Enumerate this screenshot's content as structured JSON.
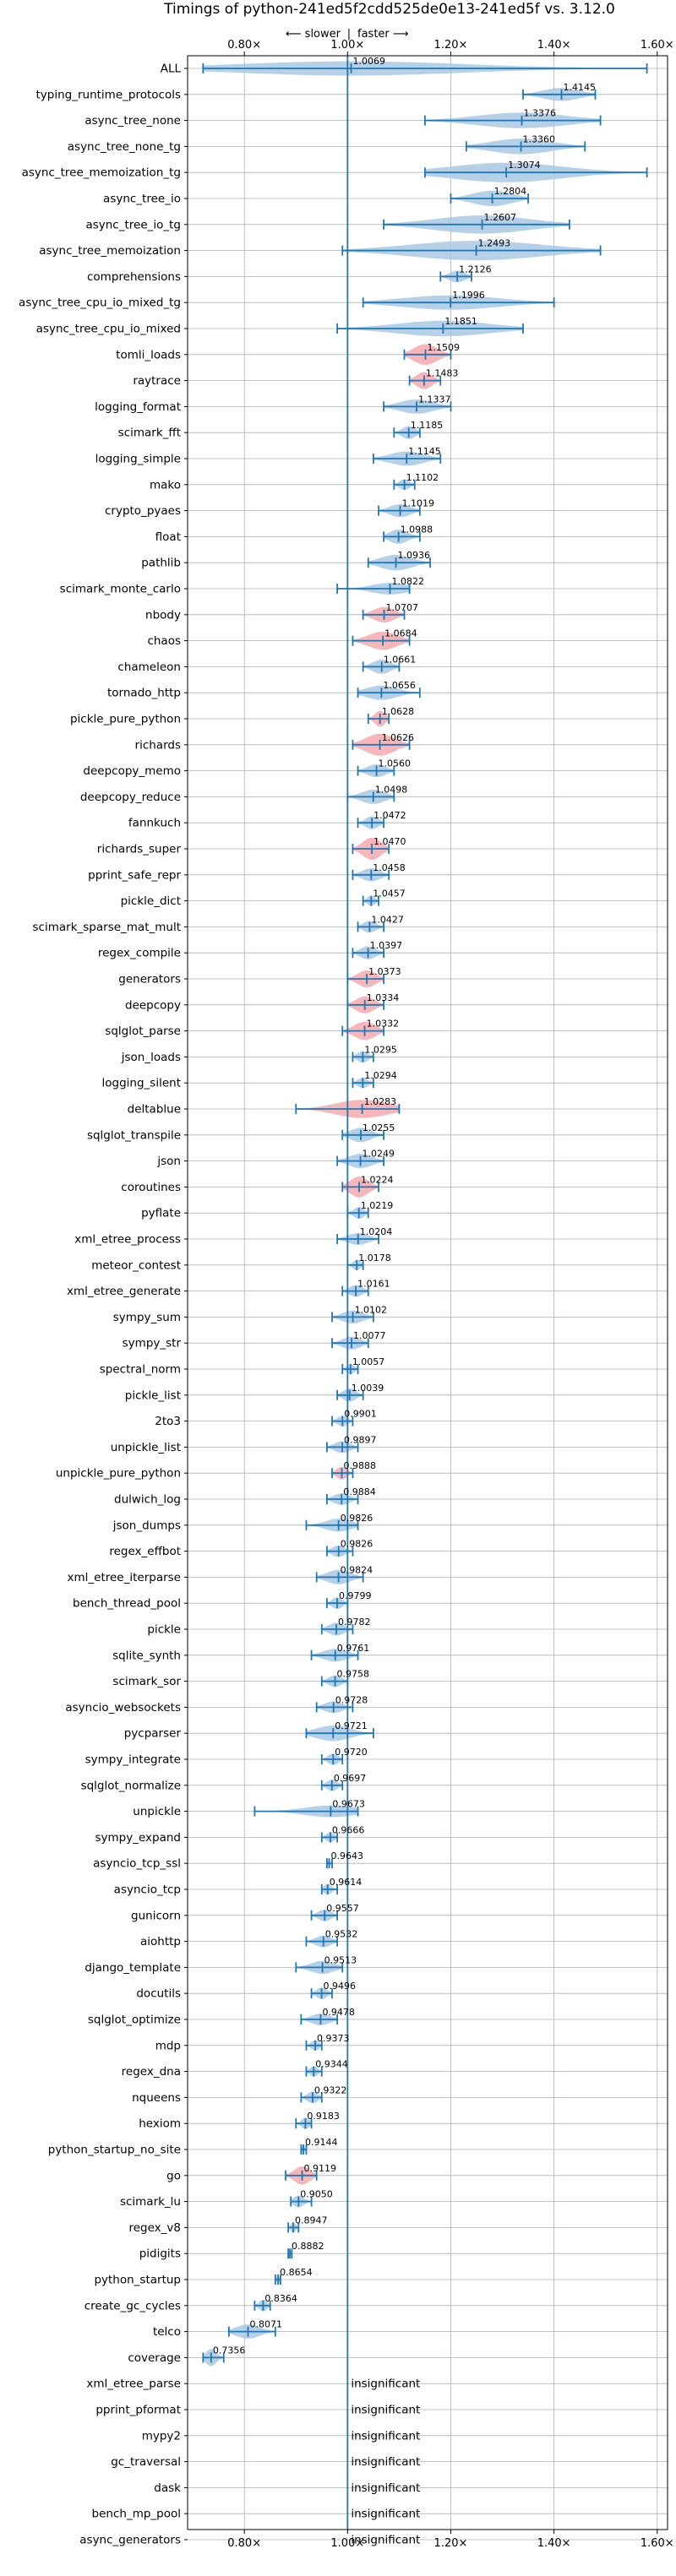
{
  "chart_data": {
    "type": "violin",
    "title": "Timings of python-241ed5f2cdd525de0e13-241ed5f vs. 3.12.0",
    "direction_labels": {
      "slower": "⟵ slower",
      "separator": "|",
      "faster": "faster ⟶"
    },
    "x_ticks": [
      {
        "value": 0.8,
        "label": "0.80×"
      },
      {
        "value": 1.0,
        "label": "1.00×"
      },
      {
        "value": 1.2,
        "label": "1.20×"
      },
      {
        "value": 1.4,
        "label": "1.40×"
      },
      {
        "value": 1.6,
        "label": "1.60×"
      }
    ],
    "xlim": [
      0.69,
      1.62
    ],
    "reference_value": 1.0,
    "grid": true,
    "colors": {
      "normal": "#a9c8e4",
      "highlight": "#f4a9ae",
      "line": "#1f77b4",
      "grid": "#b0b0b0"
    },
    "benchmarks": [
      {
        "name": "ALL",
        "value": 1.0069,
        "label": "1.0069",
        "min": 0.72,
        "max": 1.58,
        "width": 0.55,
        "highlight": false
      },
      {
        "name": "typing_runtime_protocols",
        "value": 1.4145,
        "label": "1.4145",
        "min": 1.34,
        "max": 1.48,
        "width": 0.5,
        "highlight": false
      },
      {
        "name": "async_tree_none",
        "value": 1.3376,
        "label": "1.3376",
        "min": 1.15,
        "max": 1.49,
        "width": 0.6,
        "highlight": false
      },
      {
        "name": "async_tree_none_tg",
        "value": 1.336,
        "label": "1.3360",
        "min": 1.23,
        "max": 1.46,
        "width": 0.6,
        "highlight": false
      },
      {
        "name": "async_tree_memoization_tg",
        "value": 1.3074,
        "label": "1.3074",
        "min": 1.15,
        "max": 1.58,
        "width": 0.75,
        "highlight": false
      },
      {
        "name": "async_tree_io",
        "value": 1.2804,
        "label": "1.2804",
        "min": 1.2,
        "max": 1.35,
        "width": 0.6,
        "highlight": false
      },
      {
        "name": "async_tree_io_tg",
        "value": 1.2607,
        "label": "1.2607",
        "min": 1.07,
        "max": 1.43,
        "width": 0.7,
        "highlight": false
      },
      {
        "name": "async_tree_memoization",
        "value": 1.2493,
        "label": "1.2493",
        "min": 0.99,
        "max": 1.49,
        "width": 0.75,
        "highlight": false
      },
      {
        "name": "comprehensions",
        "value": 1.2126,
        "label": "1.2126",
        "min": 1.18,
        "max": 1.24,
        "width": 0.45,
        "highlight": false
      },
      {
        "name": "async_tree_cpu_io_mixed_tg",
        "value": 1.1996,
        "label": "1.1996",
        "min": 1.03,
        "max": 1.4,
        "width": 0.55,
        "highlight": false
      },
      {
        "name": "async_tree_cpu_io_mixed",
        "value": 1.1851,
        "label": "1.1851",
        "min": 0.98,
        "max": 1.34,
        "width": 0.6,
        "highlight": false
      },
      {
        "name": "tomli_loads",
        "value": 1.1509,
        "label": "1.1509",
        "min": 1.11,
        "max": 1.2,
        "width": 0.8,
        "highlight": true
      },
      {
        "name": "raytrace",
        "value": 1.1483,
        "label": "1.1483",
        "min": 1.12,
        "max": 1.18,
        "width": 0.65,
        "highlight": true
      },
      {
        "name": "logging_format",
        "value": 1.1337,
        "label": "1.1337",
        "min": 1.07,
        "max": 1.2,
        "width": 0.55,
        "highlight": false
      },
      {
        "name": "scimark_fft",
        "value": 1.1185,
        "label": "1.1185",
        "min": 1.09,
        "max": 1.14,
        "width": 0.5,
        "highlight": false
      },
      {
        "name": "logging_simple",
        "value": 1.1145,
        "label": "1.1145",
        "min": 1.05,
        "max": 1.18,
        "width": 0.55,
        "highlight": false
      },
      {
        "name": "mako",
        "value": 1.1102,
        "label": "1.1102",
        "min": 1.09,
        "max": 1.13,
        "width": 0.4,
        "highlight": false
      },
      {
        "name": "crypto_pyaes",
        "value": 1.1019,
        "label": "1.1019",
        "min": 1.06,
        "max": 1.14,
        "width": 0.5,
        "highlight": false
      },
      {
        "name": "float",
        "value": 1.0988,
        "label": "1.0988",
        "min": 1.07,
        "max": 1.14,
        "width": 0.55,
        "highlight": false
      },
      {
        "name": "pathlib",
        "value": 1.0936,
        "label": "1.0936",
        "min": 1.04,
        "max": 1.16,
        "width": 0.6,
        "highlight": false
      },
      {
        "name": "scimark_monte_carlo",
        "value": 1.0822,
        "label": "1.0822",
        "min": 0.98,
        "max": 1.12,
        "width": 0.45,
        "highlight": false
      },
      {
        "name": "nbody",
        "value": 1.0707,
        "label": "1.0707",
        "min": 1.03,
        "max": 1.11,
        "width": 0.6,
        "highlight": true
      },
      {
        "name": "chaos",
        "value": 1.0684,
        "label": "1.0684",
        "min": 1.01,
        "max": 1.12,
        "width": 0.7,
        "highlight": true
      },
      {
        "name": "chameleon",
        "value": 1.0661,
        "label": "1.0661",
        "min": 1.03,
        "max": 1.1,
        "width": 0.55,
        "highlight": false
      },
      {
        "name": "tornado_http",
        "value": 1.0656,
        "label": "1.0656",
        "min": 1.02,
        "max": 1.14,
        "width": 0.55,
        "highlight": false
      },
      {
        "name": "pickle_pure_python",
        "value": 1.0628,
        "label": "1.0628",
        "min": 1.04,
        "max": 1.08,
        "width": 0.6,
        "highlight": true
      },
      {
        "name": "richards",
        "value": 1.0626,
        "label": "1.0626",
        "min": 1.01,
        "max": 1.12,
        "width": 0.85,
        "highlight": true
      },
      {
        "name": "deepcopy_memo",
        "value": 1.056,
        "label": "1.0560",
        "min": 1.02,
        "max": 1.09,
        "width": 0.5,
        "highlight": false
      },
      {
        "name": "deepcopy_reduce",
        "value": 1.0498,
        "label": "1.0498",
        "min": 1.0,
        "max": 1.09,
        "width": 0.55,
        "highlight": false
      },
      {
        "name": "fannkuch",
        "value": 1.0472,
        "label": "1.0472",
        "min": 1.02,
        "max": 1.07,
        "width": 0.5,
        "highlight": false
      },
      {
        "name": "richards_super",
        "value": 1.047,
        "label": "1.0470",
        "min": 1.01,
        "max": 1.08,
        "width": 0.85,
        "highlight": true
      },
      {
        "name": "pprint_safe_repr",
        "value": 1.0458,
        "label": "1.0458",
        "min": 1.01,
        "max": 1.08,
        "width": 0.5,
        "highlight": false
      },
      {
        "name": "pickle_dict",
        "value": 1.0457,
        "label": "1.0457",
        "min": 1.03,
        "max": 1.06,
        "width": 0.4,
        "highlight": false
      },
      {
        "name": "scimark_sparse_mat_mult",
        "value": 1.0427,
        "label": "1.0427",
        "min": 1.02,
        "max": 1.07,
        "width": 0.45,
        "highlight": false
      },
      {
        "name": "regex_compile",
        "value": 1.0397,
        "label": "1.0397",
        "min": 1.01,
        "max": 1.07,
        "width": 0.5,
        "highlight": false
      },
      {
        "name": "generators",
        "value": 1.0373,
        "label": "1.0373",
        "min": 1.0,
        "max": 1.07,
        "width": 0.65,
        "highlight": true
      },
      {
        "name": "deepcopy",
        "value": 1.0334,
        "label": "1.0334",
        "min": 1.0,
        "max": 1.07,
        "width": 0.65,
        "highlight": true
      },
      {
        "name": "sqlglot_parse",
        "value": 1.0332,
        "label": "1.0332",
        "min": 0.99,
        "max": 1.07,
        "width": 0.7,
        "highlight": true
      },
      {
        "name": "json_loads",
        "value": 1.0295,
        "label": "1.0295",
        "min": 1.01,
        "max": 1.05,
        "width": 0.45,
        "highlight": false
      },
      {
        "name": "logging_silent",
        "value": 1.0294,
        "label": "1.0294",
        "min": 1.01,
        "max": 1.05,
        "width": 0.4,
        "highlight": false
      },
      {
        "name": "deltablue",
        "value": 1.0283,
        "label": "1.0283",
        "min": 0.9,
        "max": 1.1,
        "width": 0.7,
        "highlight": true
      },
      {
        "name": "sqlglot_transpile",
        "value": 1.0255,
        "label": "1.0255",
        "min": 0.99,
        "max": 1.07,
        "width": 0.55,
        "highlight": false
      },
      {
        "name": "json",
        "value": 1.0249,
        "label": "1.0249",
        "min": 0.98,
        "max": 1.07,
        "width": 0.55,
        "highlight": false
      },
      {
        "name": "coroutines",
        "value": 1.0224,
        "label": "1.0224",
        "min": 0.99,
        "max": 1.06,
        "width": 0.8,
        "highlight": true
      },
      {
        "name": "pyflate",
        "value": 1.0219,
        "label": "1.0219",
        "min": 1.0,
        "max": 1.04,
        "width": 0.45,
        "highlight": false
      },
      {
        "name": "xml_etree_process",
        "value": 1.0204,
        "label": "1.0204",
        "min": 0.98,
        "max": 1.06,
        "width": 0.45,
        "highlight": false
      },
      {
        "name": "meteor_contest",
        "value": 1.0178,
        "label": "1.0178",
        "min": 1.0,
        "max": 1.03,
        "width": 0.4,
        "highlight": false
      },
      {
        "name": "xml_etree_generate",
        "value": 1.0161,
        "label": "1.0161",
        "min": 0.99,
        "max": 1.04,
        "width": 0.45,
        "highlight": false
      },
      {
        "name": "sympy_sum",
        "value": 1.0102,
        "label": "1.0102",
        "min": 0.97,
        "max": 1.05,
        "width": 0.5,
        "highlight": false
      },
      {
        "name": "sympy_str",
        "value": 1.0077,
        "label": "1.0077",
        "min": 0.97,
        "max": 1.04,
        "width": 0.5,
        "highlight": false
      },
      {
        "name": "spectral_norm",
        "value": 1.0057,
        "label": "1.0057",
        "min": 0.99,
        "max": 1.02,
        "width": 0.4,
        "highlight": false
      },
      {
        "name": "pickle_list",
        "value": 1.0039,
        "label": "1.0039",
        "min": 0.98,
        "max": 1.03,
        "width": 0.5,
        "highlight": false
      },
      {
        "name": "2to3",
        "value": 0.9901,
        "label": "0.9901",
        "min": 0.97,
        "max": 1.01,
        "width": 0.4,
        "highlight": false
      },
      {
        "name": "unpickle_list",
        "value": 0.9897,
        "label": "0.9897",
        "min": 0.96,
        "max": 1.02,
        "width": 0.45,
        "highlight": false
      },
      {
        "name": "unpickle_pure_python",
        "value": 0.9888,
        "label": "0.9888",
        "min": 0.97,
        "max": 1.01,
        "width": 0.5,
        "highlight": true
      },
      {
        "name": "dulwich_log",
        "value": 0.9884,
        "label": "0.9884",
        "min": 0.96,
        "max": 1.02,
        "width": 0.45,
        "highlight": false
      },
      {
        "name": "json_dumps",
        "value": 0.9826,
        "label": "0.9826",
        "min": 0.92,
        "max": 1.02,
        "width": 0.5,
        "highlight": false
      },
      {
        "name": "regex_effbot",
        "value": 0.9826,
        "label": "0.9826",
        "min": 0.96,
        "max": 1.01,
        "width": 0.45,
        "highlight": false
      },
      {
        "name": "xml_etree_iterparse",
        "value": 0.9824,
        "label": "0.9824",
        "min": 0.94,
        "max": 1.03,
        "width": 0.55,
        "highlight": false
      },
      {
        "name": "bench_thread_pool",
        "value": 0.9799,
        "label": "0.9799",
        "min": 0.96,
        "max": 1.0,
        "width": 0.45,
        "highlight": false
      },
      {
        "name": "pickle",
        "value": 0.9782,
        "label": "0.9782",
        "min": 0.95,
        "max": 1.01,
        "width": 0.5,
        "highlight": false
      },
      {
        "name": "sqlite_synth",
        "value": 0.9761,
        "label": "0.9761",
        "min": 0.93,
        "max": 1.02,
        "width": 0.5,
        "highlight": false
      },
      {
        "name": "scimark_sor",
        "value": 0.9758,
        "label": "0.9758",
        "min": 0.95,
        "max": 1.0,
        "width": 0.45,
        "highlight": false
      },
      {
        "name": "asyncio_websockets",
        "value": 0.9728,
        "label": "0.9728",
        "min": 0.94,
        "max": 1.01,
        "width": 0.45,
        "highlight": false
      },
      {
        "name": "pycparser",
        "value": 0.9721,
        "label": "0.9721",
        "min": 0.92,
        "max": 1.05,
        "width": 0.6,
        "highlight": false
      },
      {
        "name": "sympy_integrate",
        "value": 0.972,
        "label": "0.9720",
        "min": 0.95,
        "max": 0.99,
        "width": 0.45,
        "highlight": false
      },
      {
        "name": "sqlglot_normalize",
        "value": 0.9697,
        "label": "0.9697",
        "min": 0.95,
        "max": 0.99,
        "width": 0.45,
        "highlight": false
      },
      {
        "name": "unpickle",
        "value": 0.9673,
        "label": "0.9673",
        "min": 0.82,
        "max": 1.02,
        "width": 0.45,
        "highlight": false
      },
      {
        "name": "sympy_expand",
        "value": 0.9666,
        "label": "0.9666",
        "min": 0.95,
        "max": 0.98,
        "width": 0.4,
        "highlight": false
      },
      {
        "name": "asyncio_tcp_ssl",
        "value": 0.9643,
        "label": "0.9643",
        "min": 0.96,
        "max": 0.97,
        "width": 0.3,
        "highlight": false
      },
      {
        "name": "asyncio_tcp",
        "value": 0.9614,
        "label": "0.9614",
        "min": 0.95,
        "max": 0.98,
        "width": 0.4,
        "highlight": false
      },
      {
        "name": "gunicorn",
        "value": 0.9557,
        "label": "0.9557",
        "min": 0.93,
        "max": 0.98,
        "width": 0.45,
        "highlight": false
      },
      {
        "name": "aiohttp",
        "value": 0.9532,
        "label": "0.9532",
        "min": 0.92,
        "max": 0.98,
        "width": 0.45,
        "highlight": false
      },
      {
        "name": "django_template",
        "value": 0.9513,
        "label": "0.9513",
        "min": 0.9,
        "max": 0.99,
        "width": 0.5,
        "highlight": false
      },
      {
        "name": "docutils",
        "value": 0.9496,
        "label": "0.9496",
        "min": 0.93,
        "max": 0.97,
        "width": 0.45,
        "highlight": false
      },
      {
        "name": "sqlglot_optimize",
        "value": 0.9478,
        "label": "0.9478",
        "min": 0.91,
        "max": 0.98,
        "width": 0.45,
        "highlight": false
      },
      {
        "name": "mdp",
        "value": 0.9373,
        "label": "0.9373",
        "min": 0.92,
        "max": 0.95,
        "width": 0.4,
        "highlight": false
      },
      {
        "name": "regex_dna",
        "value": 0.9344,
        "label": "0.9344",
        "min": 0.92,
        "max": 0.95,
        "width": 0.4,
        "highlight": false
      },
      {
        "name": "nqueens",
        "value": 0.9322,
        "label": "0.9322",
        "min": 0.91,
        "max": 0.95,
        "width": 0.45,
        "highlight": false
      },
      {
        "name": "hexiom",
        "value": 0.9183,
        "label": "0.9183",
        "min": 0.9,
        "max": 0.93,
        "width": 0.45,
        "highlight": false
      },
      {
        "name": "python_startup_no_site",
        "value": 0.9144,
        "label": "0.9144",
        "min": 0.91,
        "max": 0.92,
        "width": 0.35,
        "highlight": false
      },
      {
        "name": "go",
        "value": 0.9119,
        "label": "0.9119",
        "min": 0.88,
        "max": 0.94,
        "width": 0.7,
        "highlight": true
      },
      {
        "name": "scimark_lu",
        "value": 0.905,
        "label": "0.9050",
        "min": 0.89,
        "max": 0.93,
        "width": 0.45,
        "highlight": false
      },
      {
        "name": "regex_v8",
        "value": 0.8947,
        "label": "0.8947",
        "min": 0.885,
        "max": 0.905,
        "width": 0.4,
        "highlight": false
      },
      {
        "name": "pidigits",
        "value": 0.8882,
        "label": "0.8882",
        "min": 0.885,
        "max": 0.892,
        "width": 0.25,
        "highlight": false
      },
      {
        "name": "python_startup",
        "value": 0.8654,
        "label": "0.8654",
        "min": 0.86,
        "max": 0.87,
        "width": 0.35,
        "highlight": false
      },
      {
        "name": "create_gc_cycles",
        "value": 0.8364,
        "label": "0.8364",
        "min": 0.82,
        "max": 0.85,
        "width": 0.45,
        "highlight": false
      },
      {
        "name": "telco",
        "value": 0.8071,
        "label": "0.8071",
        "min": 0.77,
        "max": 0.86,
        "width": 0.55,
        "highlight": false
      },
      {
        "name": "coverage",
        "value": 0.7356,
        "label": "0.7356",
        "min": 0.72,
        "max": 0.76,
        "width": 0.65,
        "highlight": false
      },
      {
        "name": "xml_etree_parse",
        "value": null,
        "label": "insignificant"
      },
      {
        "name": "pprint_pformat",
        "value": null,
        "label": "insignificant"
      },
      {
        "name": "mypy2",
        "value": null,
        "label": "insignificant"
      },
      {
        "name": "gc_traversal",
        "value": null,
        "label": "insignificant"
      },
      {
        "name": "dask",
        "value": null,
        "label": "insignificant"
      },
      {
        "name": "bench_mp_pool",
        "value": null,
        "label": "insignificant"
      },
      {
        "name": "async_generators",
        "value": null,
        "label": "insignificant"
      }
    ]
  }
}
